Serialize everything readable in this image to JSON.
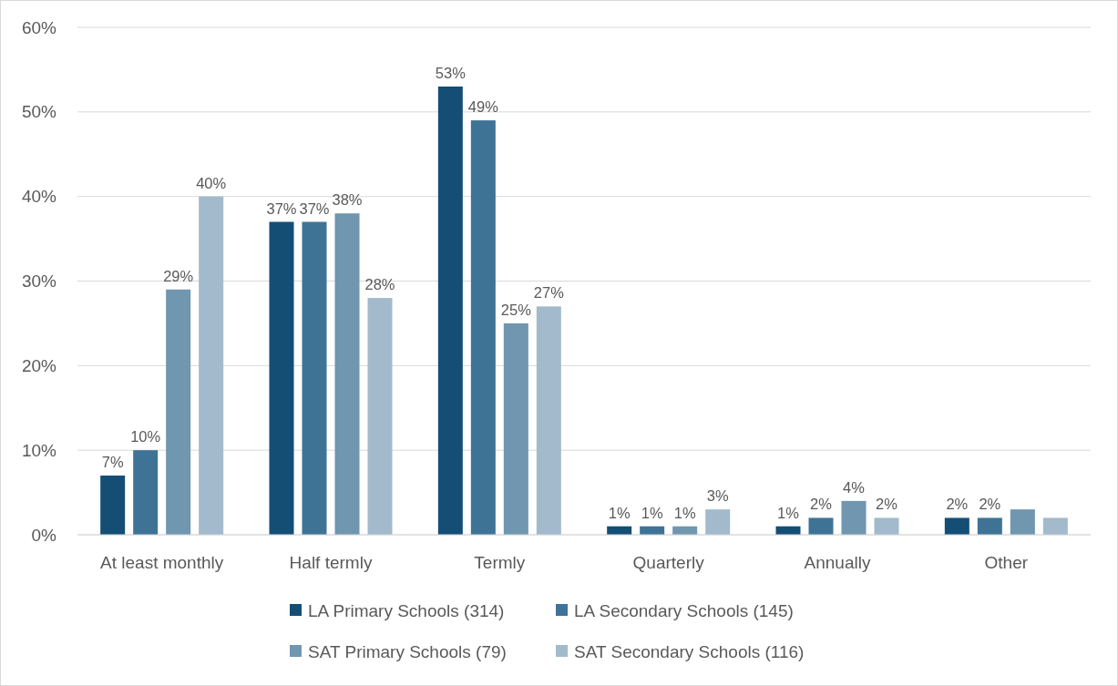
{
  "chart_data": {
    "type": "bar",
    "categories": [
      "At least monthly",
      "Half termly",
      "Termly",
      "Quarterly",
      "Annually",
      "Other"
    ],
    "series": [
      {
        "name": "LA Primary Schools (314)",
        "color": "#154e74",
        "values": [
          7,
          37,
          53,
          1,
          1,
          2
        ],
        "value_labels": [
          "7%",
          "37%",
          "53%",
          "1%",
          "1%",
          "2%"
        ]
      },
      {
        "name": "LA Secondary Schools (145)",
        "color": "#3f7396",
        "values": [
          10,
          37,
          49,
          1,
          2,
          2
        ],
        "value_labels": [
          "10%",
          "37%",
          "49%",
          "1%",
          "2%",
          "2%"
        ]
      },
      {
        "name": "SAT Primary Schools (79)",
        "color": "#7096b0",
        "values": [
          29,
          38,
          25,
          1,
          4,
          3
        ],
        "value_labels": [
          "29%",
          "38%",
          "25%",
          "1%",
          "4%",
          null
        ]
      },
      {
        "name": "SAT Secondary Schools (116)",
        "color": "#a2bacb",
        "values": [
          40,
          28,
          27,
          3,
          2,
          2
        ],
        "value_labels": [
          "40%",
          "28%",
          "27%",
          "3%",
          "2%",
          null
        ]
      }
    ],
    "ylim": [
      0,
      60
    ],
    "yticks": [
      {
        "value": 0,
        "label": "0%"
      },
      {
        "value": 10,
        "label": "10%"
      },
      {
        "value": 20,
        "label": "20%"
      },
      {
        "value": 30,
        "label": "30%"
      },
      {
        "value": 40,
        "label": "40%"
      },
      {
        "value": 50,
        "label": "50%"
      },
      {
        "value": 60,
        "label": "60%"
      }
    ],
    "grid": "y",
    "legend": "bottom"
  }
}
